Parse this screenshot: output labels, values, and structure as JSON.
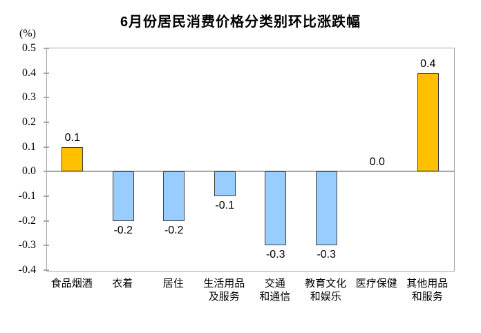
{
  "title": "6月份居民消费价格分类别环比涨跌幅",
  "unit_label": "(%)",
  "colors": {
    "positive_bar": "#FFC000",
    "negative_bar": "#99CCFF",
    "bar_border": "#404040",
    "axis": "#A6A6A6",
    "text": "#000000",
    "background": "#FFFFFF"
  },
  "chart_data": {
    "type": "bar",
    "title": "6月份居民消费价格分类别环比涨跌幅",
    "ylabel": "(%)",
    "xlabel": "",
    "ylim": [
      -0.4,
      0.5
    ],
    "ytick_step": 0.1,
    "grid": false,
    "legend": "none",
    "categories": [
      "食品烟酒",
      "衣着",
      "居住",
      "生活用品\n及服务",
      "交通\n和通信",
      "教育文化\n和娱乐",
      "医疗保健",
      "其他用品\n和服务"
    ],
    "values": [
      0.1,
      -0.2,
      -0.2,
      -0.1,
      -0.3,
      -0.3,
      0.0,
      0.4
    ],
    "value_labels": [
      "0.1",
      "-0.2",
      "-0.2",
      "-0.1",
      "-0.3",
      "-0.3",
      "0.0",
      "0.4"
    ],
    "yticks": [
      "0.5",
      "0.4",
      "0.3",
      "0.2",
      "0.1",
      "0.0",
      "-0.1",
      "-0.2",
      "-0.3",
      "-0.4"
    ]
  }
}
